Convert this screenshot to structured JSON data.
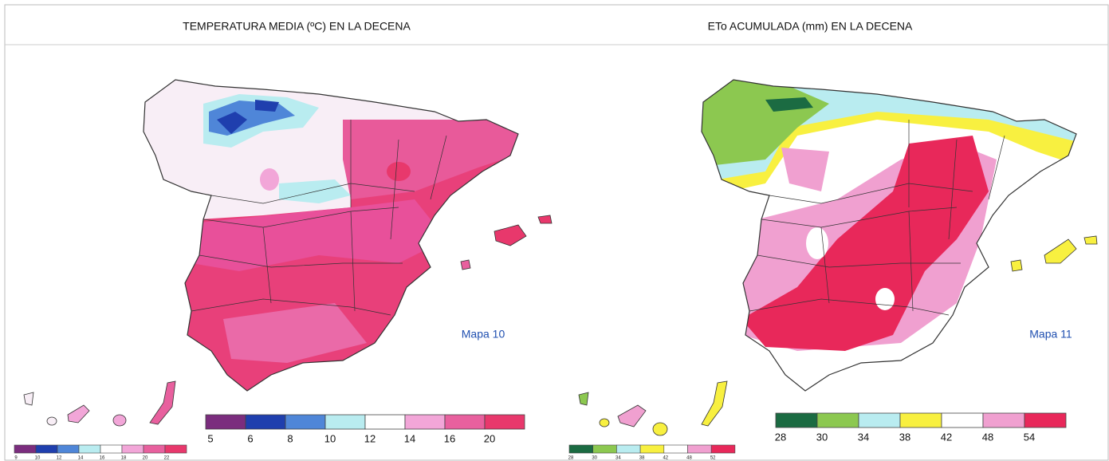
{
  "panels": [
    {
      "title": "TEMPERATURA MEDIA (ºC) EN LA DECENA",
      "map_label": "Mapa 10",
      "legend": {
        "colors": [
          "#7b2d7e",
          "#1f3fae",
          "#4f86d8",
          "#b9ecf0",
          "#ffffff",
          "#f2a6d8",
          "#e8609e",
          "#e8386c"
        ],
        "labels": [
          "5",
          "6",
          "8",
          "10",
          "12",
          "14",
          "16",
          "20"
        ]
      },
      "mini_legend": {
        "labels": [
          "9",
          "10",
          "12",
          "14",
          "16",
          "18",
          "20",
          "22"
        ]
      }
    },
    {
      "title": "ETo ACUMULADA (mm) EN LA DECENA",
      "map_label": "Mapa 11",
      "legend": {
        "colors": [
          "#1b6b42",
          "#8cc850",
          "#b9ecf0",
          "#f8f040",
          "#ffffff",
          "#f0a0d0",
          "#e8285a"
        ],
        "labels": [
          "28",
          "30",
          "34",
          "38",
          "42",
          "48",
          "54"
        ]
      },
      "mini_legend": {
        "labels": [
          "28",
          "30",
          "34",
          "38",
          "42",
          "48",
          "52"
        ]
      }
    }
  ]
}
